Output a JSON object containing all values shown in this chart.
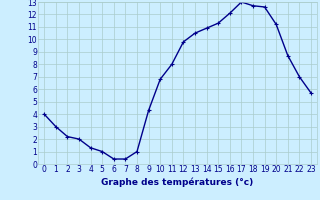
{
  "hours": [
    0,
    1,
    2,
    3,
    4,
    5,
    6,
    7,
    8,
    9,
    10,
    11,
    12,
    13,
    14,
    15,
    16,
    17,
    18,
    19,
    20,
    21,
    22,
    23
  ],
  "temps": [
    4.0,
    3.0,
    2.2,
    2.0,
    1.3,
    1.0,
    0.4,
    0.4,
    1.0,
    4.3,
    6.8,
    8.0,
    9.8,
    10.5,
    10.9,
    11.3,
    12.1,
    13.0,
    12.7,
    12.6,
    11.2,
    8.7,
    7.0,
    5.7
  ],
  "line_color": "#00008B",
  "marker": "+",
  "bg_color": "#cceeff",
  "grid_color": "#aacccc",
  "xlabel": "Graphe des températures (°c)",
  "xlabel_color": "#00008B",
  "xlabel_fontsize": 6.5,
  "tick_color": "#00008B",
  "tick_fontsize": 5.5,
  "ylim": [
    0,
    13
  ],
  "xlim_min": -0.5,
  "xlim_max": 23.5,
  "yticks": [
    0,
    1,
    2,
    3,
    4,
    5,
    6,
    7,
    8,
    9,
    10,
    11,
    12,
    13
  ],
  "xticks": [
    0,
    1,
    2,
    3,
    4,
    5,
    6,
    7,
    8,
    9,
    10,
    11,
    12,
    13,
    14,
    15,
    16,
    17,
    18,
    19,
    20,
    21,
    22,
    23
  ],
  "linewidth": 1.0,
  "markersize": 3.0
}
